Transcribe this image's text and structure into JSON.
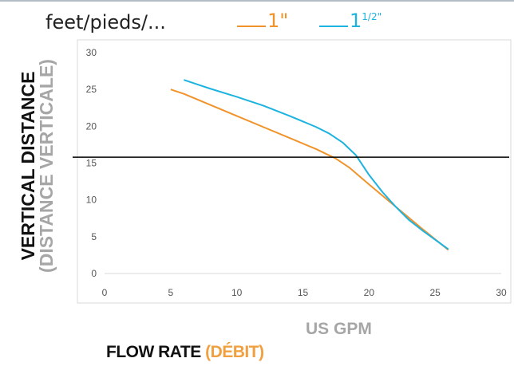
{
  "header": {
    "units_label": "feet/pieds/...",
    "legend": [
      {
        "label": "1\"",
        "color": "#f0932b",
        "sup": ""
      },
      {
        "label": "1",
        "color": "#1cb3e0",
        "sup": "1/2\""
      }
    ]
  },
  "y_title": {
    "main": "VERTICAL DISTANCE",
    "sub": "(DISTANCE VERTICALE)"
  },
  "x_units": "US GPM",
  "x_title": {
    "main": "FLOW RATE ",
    "sub": "(DÉBIT)"
  },
  "chart_data": {
    "type": "line",
    "xlim": [
      0,
      30
    ],
    "ylim": [
      0,
      30
    ],
    "x_ticks": [
      0,
      5,
      10,
      15,
      20,
      25,
      30
    ],
    "y_ticks": [
      0,
      5,
      10,
      15,
      20,
      25,
      30
    ],
    "grid": false,
    "series": [
      {
        "name": "1\"",
        "color": "#f0932b",
        "x": [
          5,
          6,
          8,
          10,
          12,
          14,
          16,
          17.5,
          18.5,
          20,
          22,
          24,
          26
        ],
        "y": [
          25,
          24.4,
          22.9,
          21.4,
          19.9,
          18.4,
          16.9,
          15.6,
          14.4,
          12.1,
          9.1,
          6.1,
          3.2
        ]
      },
      {
        "name": "1 1/2\"",
        "color": "#1cb3e0",
        "x": [
          6,
          8,
          10,
          12,
          14,
          16,
          17,
          18,
          19,
          20,
          21,
          22,
          23,
          24,
          26
        ],
        "y": [
          26.3,
          25.1,
          24,
          22.8,
          21.4,
          19.9,
          19,
          17.8,
          16.1,
          13.4,
          11.1,
          9.1,
          7.3,
          5.9,
          3.3
        ]
      }
    ],
    "reference_line_y": 15.8,
    "reference_line_color": "#000000"
  }
}
